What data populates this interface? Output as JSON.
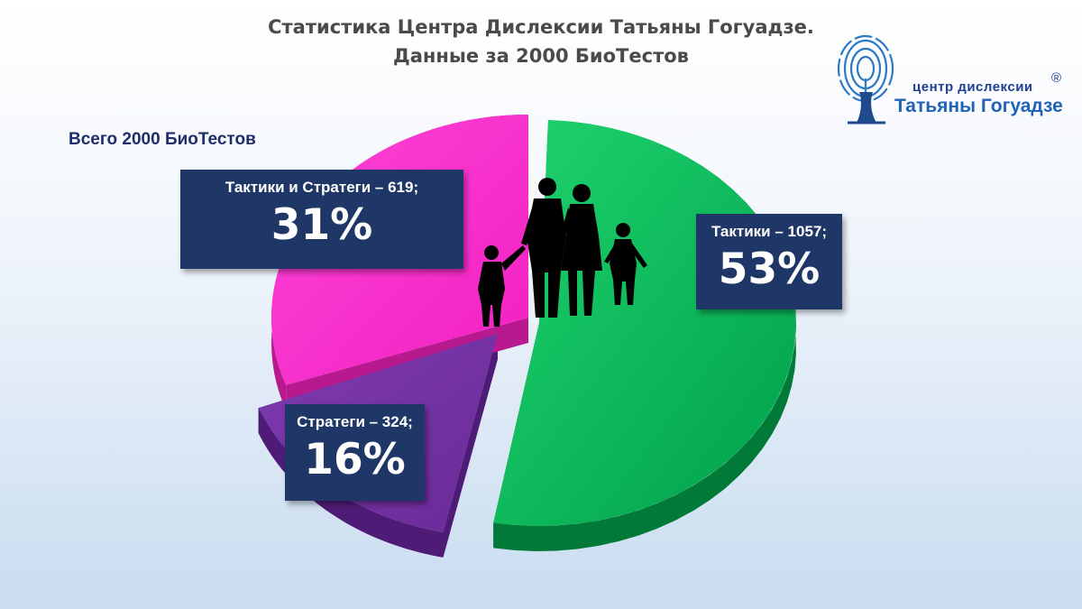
{
  "title": {
    "line1": "Статистика Центра Дислексии Татьяны Гогуадзе.",
    "line2": "Данные за 2000 БиоТестов"
  },
  "total_label": "Всего 2000 БиоТестов",
  "logo": {
    "line1": "центр дислексии",
    "line2": "Татьяны Гогуадзе",
    "registered": "®"
  },
  "colors": {
    "green": "#00b050",
    "magenta": "#ff33cc",
    "purple": "#7030a0",
    "label_bg": "#1f3767"
  },
  "chart_data": {
    "type": "pie",
    "total": 2000,
    "slices": [
      {
        "key": "green",
        "label": "Тактики – 1057;",
        "value": 1057,
        "percent_label": "53%",
        "color": "#00b050"
      },
      {
        "key": "purple",
        "label": "Стратеги – 324;",
        "value": 324,
        "percent_label": "16%",
        "color": "#7030a0"
      },
      {
        "key": "magenta",
        "label": "Тактики и Стратеги – 619;",
        "value": 619,
        "percent_label": "31%",
        "color": "#ff33cc"
      }
    ]
  }
}
